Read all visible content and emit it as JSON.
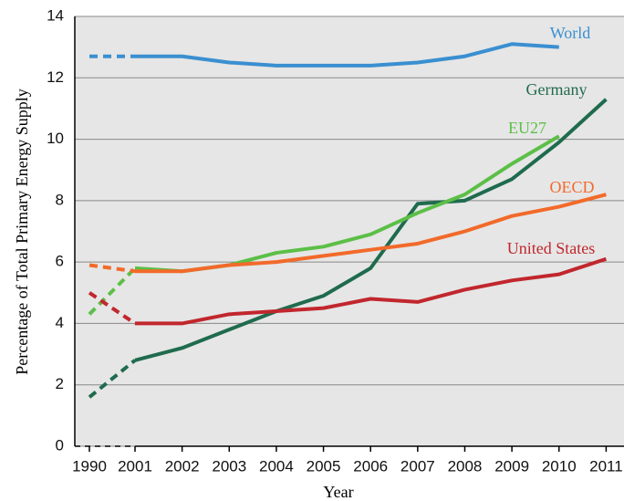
{
  "chart_data": {
    "type": "line",
    "x_label": "Year",
    "y_label": "Percentage of Total Primary Energy Supply",
    "categories": [
      "1990",
      "2001",
      "2002",
      "2003",
      "2004",
      "2005",
      "2006",
      "2007",
      "2008",
      "2009",
      "2010",
      "2011"
    ],
    "ylim": [
      0,
      14
    ],
    "yticks": [
      0,
      2,
      4,
      6,
      8,
      10,
      12,
      14
    ],
    "grid": true,
    "series": [
      {
        "name": "World",
        "color": "#3a8fd0",
        "values": [
          12.7,
          12.7,
          12.7,
          12.5,
          12.4,
          12.4,
          12.4,
          12.5,
          12.7,
          13.1,
          13.0,
          null
        ]
      },
      {
        "name": "Germany",
        "color": "#1f6b4e",
        "values": [
          1.6,
          2.8,
          3.2,
          3.8,
          4.4,
          4.9,
          5.8,
          7.9,
          8.0,
          8.7,
          9.9,
          11.3
        ]
      },
      {
        "name": "EU27",
        "color": "#5cbf47",
        "values": [
          4.3,
          5.8,
          5.7,
          5.9,
          6.3,
          6.5,
          6.9,
          7.6,
          8.2,
          9.2,
          10.1,
          null
        ]
      },
      {
        "name": "OECD",
        "color": "#f26a2a",
        "values": [
          5.9,
          5.7,
          5.7,
          5.9,
          6.0,
          6.2,
          6.4,
          6.6,
          7.0,
          7.5,
          7.8,
          8.2
        ]
      },
      {
        "name": "United States",
        "color": "#c1272d",
        "values": [
          5.0,
          4.0,
          4.0,
          4.3,
          4.4,
          4.5,
          4.8,
          4.7,
          5.1,
          5.4,
          5.6,
          6.1
        ]
      }
    ]
  }
}
